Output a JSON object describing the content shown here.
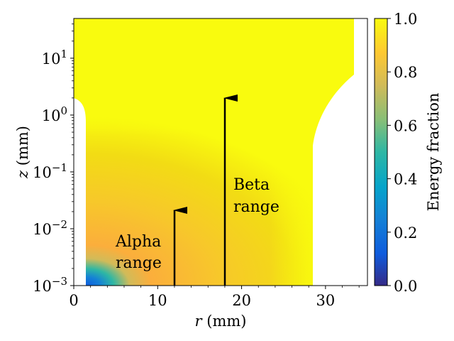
{
  "chart_data": {
    "type": "heatmap",
    "title": "",
    "xlabel_var": "r",
    "xlabel_unit": " (mm)",
    "ylabel_var": "z",
    "ylabel_unit": " (mm)",
    "x_scale": "linear",
    "y_scale": "log",
    "xlim": [
      0,
      35
    ],
    "ylim": [
      0.001,
      50
    ],
    "x_ticks": [
      {
        "value": 0,
        "label": "0"
      },
      {
        "value": 10,
        "label": "10"
      },
      {
        "value": 20,
        "label": "20"
      },
      {
        "value": 30,
        "label": "30"
      }
    ],
    "y_ticks": [
      {
        "value": 0.001,
        "base": "10",
        "exp": "−3"
      },
      {
        "value": 0.01,
        "base": "10",
        "exp": "−2"
      },
      {
        "value": 0.1,
        "base": "10",
        "exp": "−1"
      },
      {
        "value": 1,
        "base": "10",
        "exp": "0"
      },
      {
        "value": 10,
        "base": "10",
        "exp": "1"
      }
    ],
    "colorbar": {
      "label": "Energy fraction",
      "range": [
        0.0,
        1.0
      ],
      "ticks": [
        "0.0",
        "0.2",
        "0.4",
        "0.6",
        "0.8",
        "1.0"
      ],
      "colormap": [
        "#352a87",
        "#0f5cdd",
        "#1481d6",
        "#06a4ca",
        "#2eb7a4",
        "#87bf77",
        "#d1bb59",
        "#fec832",
        "#f9fb0e"
      ]
    },
    "masked_regions": {
      "left_r_below_mm": 1.5,
      "right_r_above_mm": 28.5,
      "description": "white (no data) near axis and at large radius"
    },
    "annotations": [
      {
        "label_line1": "Alpha",
        "label_line2": "range",
        "arrow_r": 12,
        "arrow_z_top": 0.02
      },
      {
        "label_line1": "Beta",
        "label_line2": "range",
        "arrow_r": 18,
        "arrow_z_top": 2
      }
    ]
  }
}
